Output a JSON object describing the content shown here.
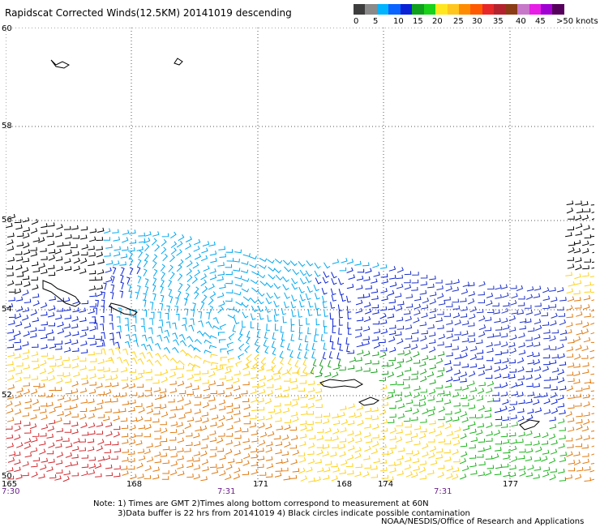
{
  "title": "Rapidscat Corrected Winds(12.5KM) 20141019 descending",
  "legend": {
    "colors": [
      "#3d3d3d",
      "#8a8a8a",
      "#00b4ff",
      "#0a64ff",
      "#0a22d6",
      "#0fa01e",
      "#19d219",
      "#ffe61e",
      "#ffc61e",
      "#ff8c00",
      "#ff5a00",
      "#e62828",
      "#b4232d",
      "#8b3c14",
      "#c878c8",
      "#e61ee6",
      "#a000d2",
      "#55005a"
    ],
    "labels": [
      "0",
      "5",
      "10",
      "15",
      "20",
      "25",
      "30",
      "35",
      "40",
      "45",
      ">50 knots"
    ]
  },
  "lat_labels": [
    "60",
    "58",
    "56",
    "54",
    "52",
    "50"
  ],
  "lon_labels": [
    "165",
    "168",
    "171",
    "168",
    "174",
    "177"
  ],
  "time_labels": [
    "7:30",
    "7:31",
    "7:31"
  ],
  "notes": [
    "Note: 1) Times are GMT 2)Times along bottom correspond to measurement at 60N",
    "3)Data buffer is 22 hrs from 20141019 4) Black circles indicate possible contamination"
  ],
  "credit": "NOAA/NESDIS/Office of Research and Applications"
}
